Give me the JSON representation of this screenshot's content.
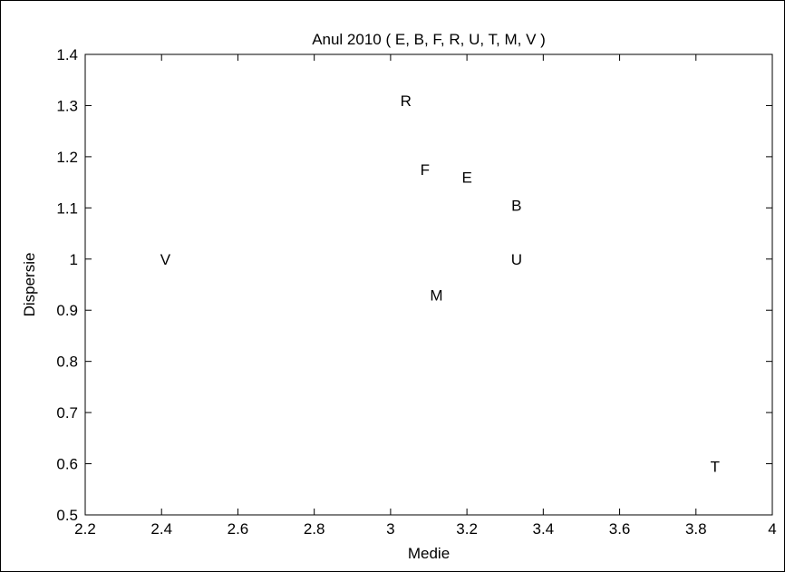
{
  "chart_data": {
    "type": "scatter",
    "title": "Anul 2010 ( E, B, F, R, U, T, M, V )",
    "xlabel": "Medie",
    "ylabel": "Dispersie",
    "xlim": [
      2.2,
      4
    ],
    "ylim": [
      0.5,
      1.4
    ],
    "xticks": [
      "2.2",
      "2.4",
      "2.6",
      "2.8",
      "3",
      "3.2",
      "3.4",
      "3.6",
      "3.8",
      "4"
    ],
    "yticks": [
      "0.5",
      "0.6",
      "0.7",
      "0.8",
      "0.9",
      "1",
      "1.1",
      "1.2",
      "1.3",
      "1.4"
    ],
    "grid": false,
    "marker": "text-label",
    "points": [
      {
        "label": "E",
        "x": 3.2,
        "y": 1.16
      },
      {
        "label": "B",
        "x": 3.33,
        "y": 1.105
      },
      {
        "label": "F",
        "x": 3.09,
        "y": 1.175
      },
      {
        "label": "R",
        "x": 3.04,
        "y": 1.31
      },
      {
        "label": "U",
        "x": 3.33,
        "y": 1.0
      },
      {
        "label": "T",
        "x": 3.85,
        "y": 0.595
      },
      {
        "label": "M",
        "x": 3.12,
        "y": 0.93
      },
      {
        "label": "V",
        "x": 2.41,
        "y": 1.0
      }
    ]
  }
}
